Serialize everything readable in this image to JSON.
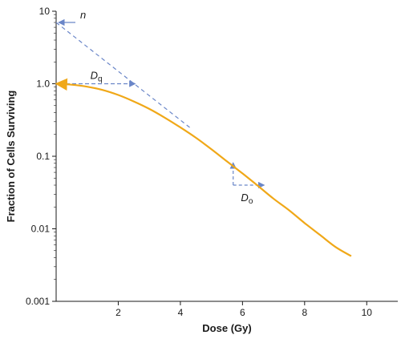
{
  "chart_data": {
    "type": "line",
    "title": "",
    "xlabel": "Dose (Gy)",
    "ylabel": "Fraction of Cells Surviving",
    "xlim": [
      0,
      11
    ],
    "ylim": [
      0.001,
      10
    ],
    "yscale": "log",
    "x_ticks": [
      2,
      4,
      6,
      8,
      10
    ],
    "x_tick_labels": [
      "2",
      "4",
      "6",
      "8",
      "10"
    ],
    "y_ticks": [
      0.001,
      0.01,
      0.1,
      1,
      10
    ],
    "y_tick_labels": [
      "0.001",
      "0.01",
      "0.1",
      "1.0",
      "10"
    ],
    "grid": false,
    "series": [
      {
        "color": "#f0a818",
        "x": [
          0,
          0.5,
          1,
          1.5,
          2,
          2.5,
          3,
          3.5,
          4,
          4.5,
          5,
          5.5,
          6,
          6.5,
          7,
          7.5,
          8,
          8.5,
          9,
          9.5
        ],
        "y": [
          1.0,
          0.97,
          0.91,
          0.82,
          0.7,
          0.57,
          0.45,
          0.34,
          0.25,
          0.18,
          0.125,
          0.085,
          0.058,
          0.039,
          0.026,
          0.018,
          0.012,
          0.0082,
          0.0056,
          0.0042
        ]
      },
      {
        "color": "#6a86c8",
        "x": [
          0,
          4.3
        ],
        "y": [
          7,
          0.25
        ]
      }
    ],
    "annotations": [
      {
        "label": "n",
        "x": 0,
        "y": 7,
        "color": "#6a86c8"
      },
      {
        "label": "D",
        "subscript": "q",
        "x0": 0,
        "x1": 2.6,
        "y": 1.0,
        "color": "#6a86c8"
      },
      {
        "label": "D",
        "subscript": "o",
        "x0": 5.7,
        "x1": 6.7,
        "y": 0.04,
        "color": "#6a86c8"
      }
    ]
  }
}
